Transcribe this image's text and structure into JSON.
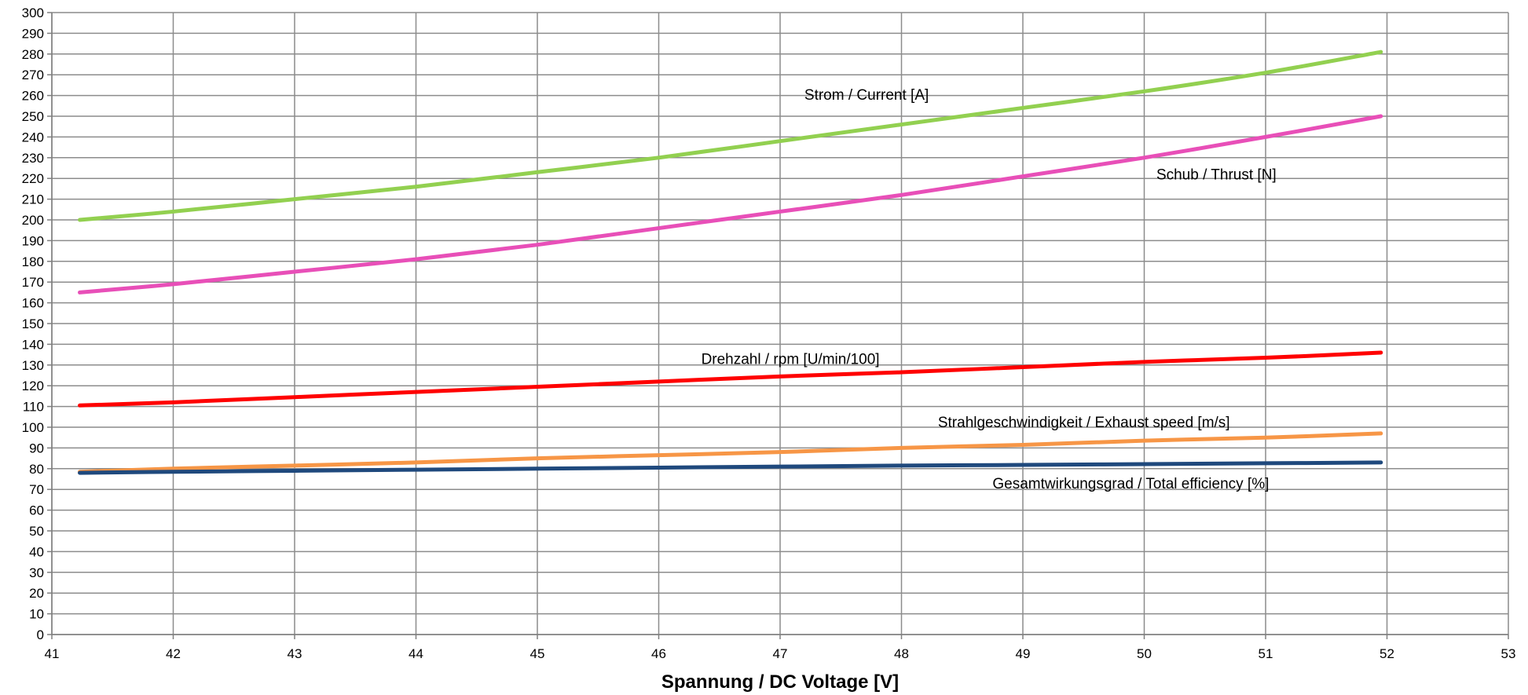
{
  "chart_data": {
    "type": "line",
    "xlabel": "Spannung / DC Voltage [V]",
    "ylabel": "",
    "xlim": [
      41,
      53
    ],
    "ylim": [
      0,
      300
    ],
    "x_ticks": [
      41,
      42,
      43,
      44,
      45,
      46,
      47,
      48,
      49,
      50,
      51,
      52,
      53
    ],
    "y_ticks": [
      0,
      10,
      20,
      30,
      40,
      50,
      60,
      70,
      80,
      90,
      100,
      110,
      120,
      130,
      140,
      150,
      160,
      170,
      180,
      190,
      200,
      210,
      220,
      230,
      240,
      250,
      260,
      270,
      280,
      290,
      300
    ],
    "grid": true,
    "legend": "none",
    "series": [
      {
        "name": "Strom / Current [A]",
        "color": "#92d050",
        "x": [
          41.23,
          42,
          43,
          44,
          45,
          46,
          47,
          48,
          49,
          50,
          51,
          51.95
        ],
        "values": [
          200,
          204,
          210,
          216,
          223,
          230,
          238,
          246,
          254,
          262,
          271,
          281
        ]
      },
      {
        "name": "Schub / Thrust [N]",
        "color": "#e84fb8",
        "x": [
          41.23,
          42,
          43,
          44,
          45,
          46,
          47,
          48,
          49,
          50,
          51,
          51.95
        ],
        "values": [
          165,
          169,
          175,
          181,
          188,
          196,
          204,
          212,
          221,
          230,
          240,
          250
        ]
      },
      {
        "name": "Drehzahl / rpm [U/min/100]",
        "color": "#ff0000",
        "x": [
          41.23,
          42,
          43,
          44,
          45,
          46,
          47,
          48,
          49,
          50,
          51,
          51.95
        ],
        "values": [
          110.5,
          112,
          114.5,
          117,
          119.5,
          122,
          124.5,
          126.5,
          129,
          131.5,
          133.5,
          136
        ]
      },
      {
        "name": "Strahlgeschwindigkeit / Exhaust speed [m/s]",
        "color": "#f79646",
        "x": [
          41.23,
          42,
          43,
          44,
          45,
          46,
          47,
          48,
          49,
          50,
          51,
          51.95
        ],
        "values": [
          78.5,
          80,
          81.5,
          83,
          85,
          86.5,
          88,
          90,
          91.5,
          93.5,
          95,
          97
        ]
      },
      {
        "name": "Gesamtwirkungsgrad / Total efficiency [%]",
        "color": "#1f497d",
        "x": [
          41.23,
          42,
          43,
          44,
          45,
          46,
          47,
          48,
          49,
          50,
          51,
          51.95
        ],
        "values": [
          78,
          78.5,
          79,
          79.5,
          80,
          80.5,
          81,
          81.5,
          81.8,
          82.2,
          82.6,
          83
        ]
      }
    ],
    "annotations": [
      {
        "text": "Strom / Current [A]",
        "series": 0,
        "x": 47.2,
        "y": 258
      },
      {
        "text": "Schub / Thrust [N]",
        "series": 1,
        "x": 50.1,
        "y": 219.5
      },
      {
        "text": "Drehzahl / rpm [U/min/100]",
        "series": 2,
        "x": 46.35,
        "y": 130.5
      },
      {
        "text": "Strahlgeschwindigkeit / Exhaust speed [m/s]",
        "series": 3,
        "x": 48.3,
        "y": 100
      },
      {
        "text": "Gesamtwirkungsgrad / Total efficiency [%]",
        "series": 4,
        "x": 48.75,
        "y": 70.5
      }
    ]
  }
}
